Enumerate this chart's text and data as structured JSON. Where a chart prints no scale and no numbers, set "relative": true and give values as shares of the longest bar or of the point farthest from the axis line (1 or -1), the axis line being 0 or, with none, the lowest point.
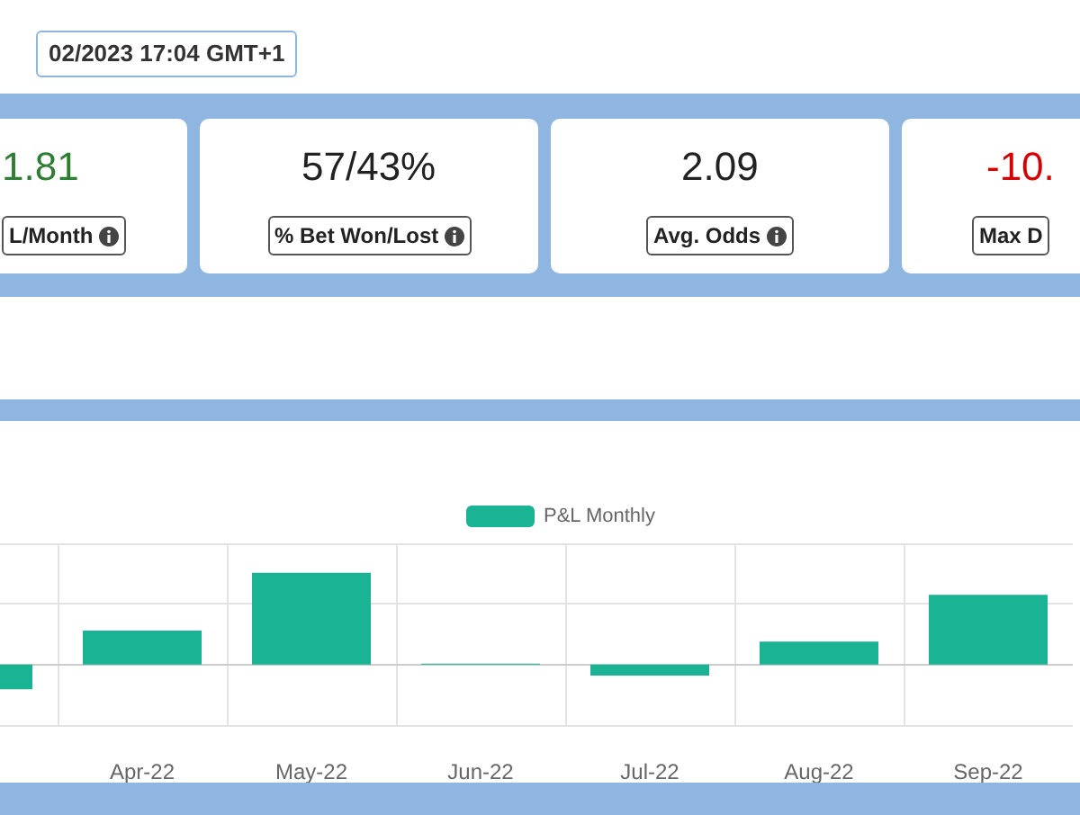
{
  "chart_data": [
    {
      "type": "other",
      "annotations": [
        "02/2023 17:04 GMT+1",
        "1.81",
        "L/Month",
        "57/43%",
        "% Bet Won/Lost",
        "2.09",
        "Avg. Odds",
        "-10.",
        "Max D"
      ]
    },
    {
      "type": "bar",
      "relative": true,
      "categories": [
        null,
        "Apr-22",
        "May-22",
        "Jun-22",
        "Jul-22",
        "Aug-22",
        "Sep-22"
      ],
      "series": [
        {
          "name": "P&L Monthly",
          "color": "#1ab394",
          "values": [
            -0.27,
            0.37,
            1,
            0.01,
            -0.12,
            0.25,
            0.76
          ]
        }
      ],
      "grid": true,
      "legend": "top"
    }
  ]
}
